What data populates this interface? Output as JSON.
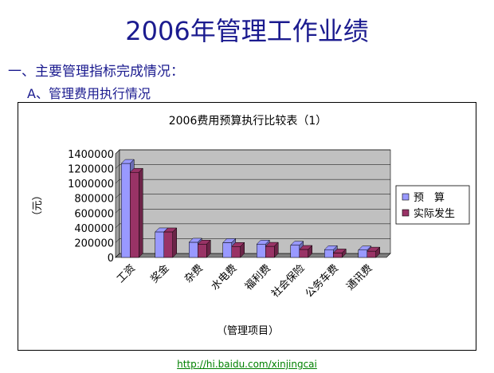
{
  "slide": {
    "title": "2006年管理工作业绩",
    "section_heading": "一、主要管理指标完成情况：",
    "sub_heading": "A、管理费用执行情况",
    "footer_link": "http://hi.baidu.com/xinjingcai"
  },
  "chart_data": {
    "type": "bar",
    "title": "2006费用预算执行比较表（1）",
    "xlabel": "（管理项目）",
    "ylabel": "（元）",
    "categories": [
      "工资",
      "奖金",
      "杂费",
      "水电费",
      "福利费",
      "社会保险",
      "公务车费",
      "通讯费"
    ],
    "series": [
      {
        "name": "预　算",
        "values": [
          1270000,
          345000,
          205000,
          200000,
          180000,
          165000,
          105000,
          100000
        ]
      },
      {
        "name": "实际发生",
        "values": [
          1150000,
          345000,
          180000,
          148000,
          150000,
          108000,
          60000,
          85000
        ]
      }
    ],
    "ylim": [
      0,
      1400000
    ],
    "yticks": [
      "0",
      "200000",
      "400000",
      "600000",
      "800000",
      "1000000",
      "1200000",
      "1400000"
    ],
    "grid": true,
    "legend_position": "right",
    "colors": {
      "series1": "#9999ff",
      "series2": "#993366",
      "plot_bg": "#c0c0c0"
    }
  }
}
